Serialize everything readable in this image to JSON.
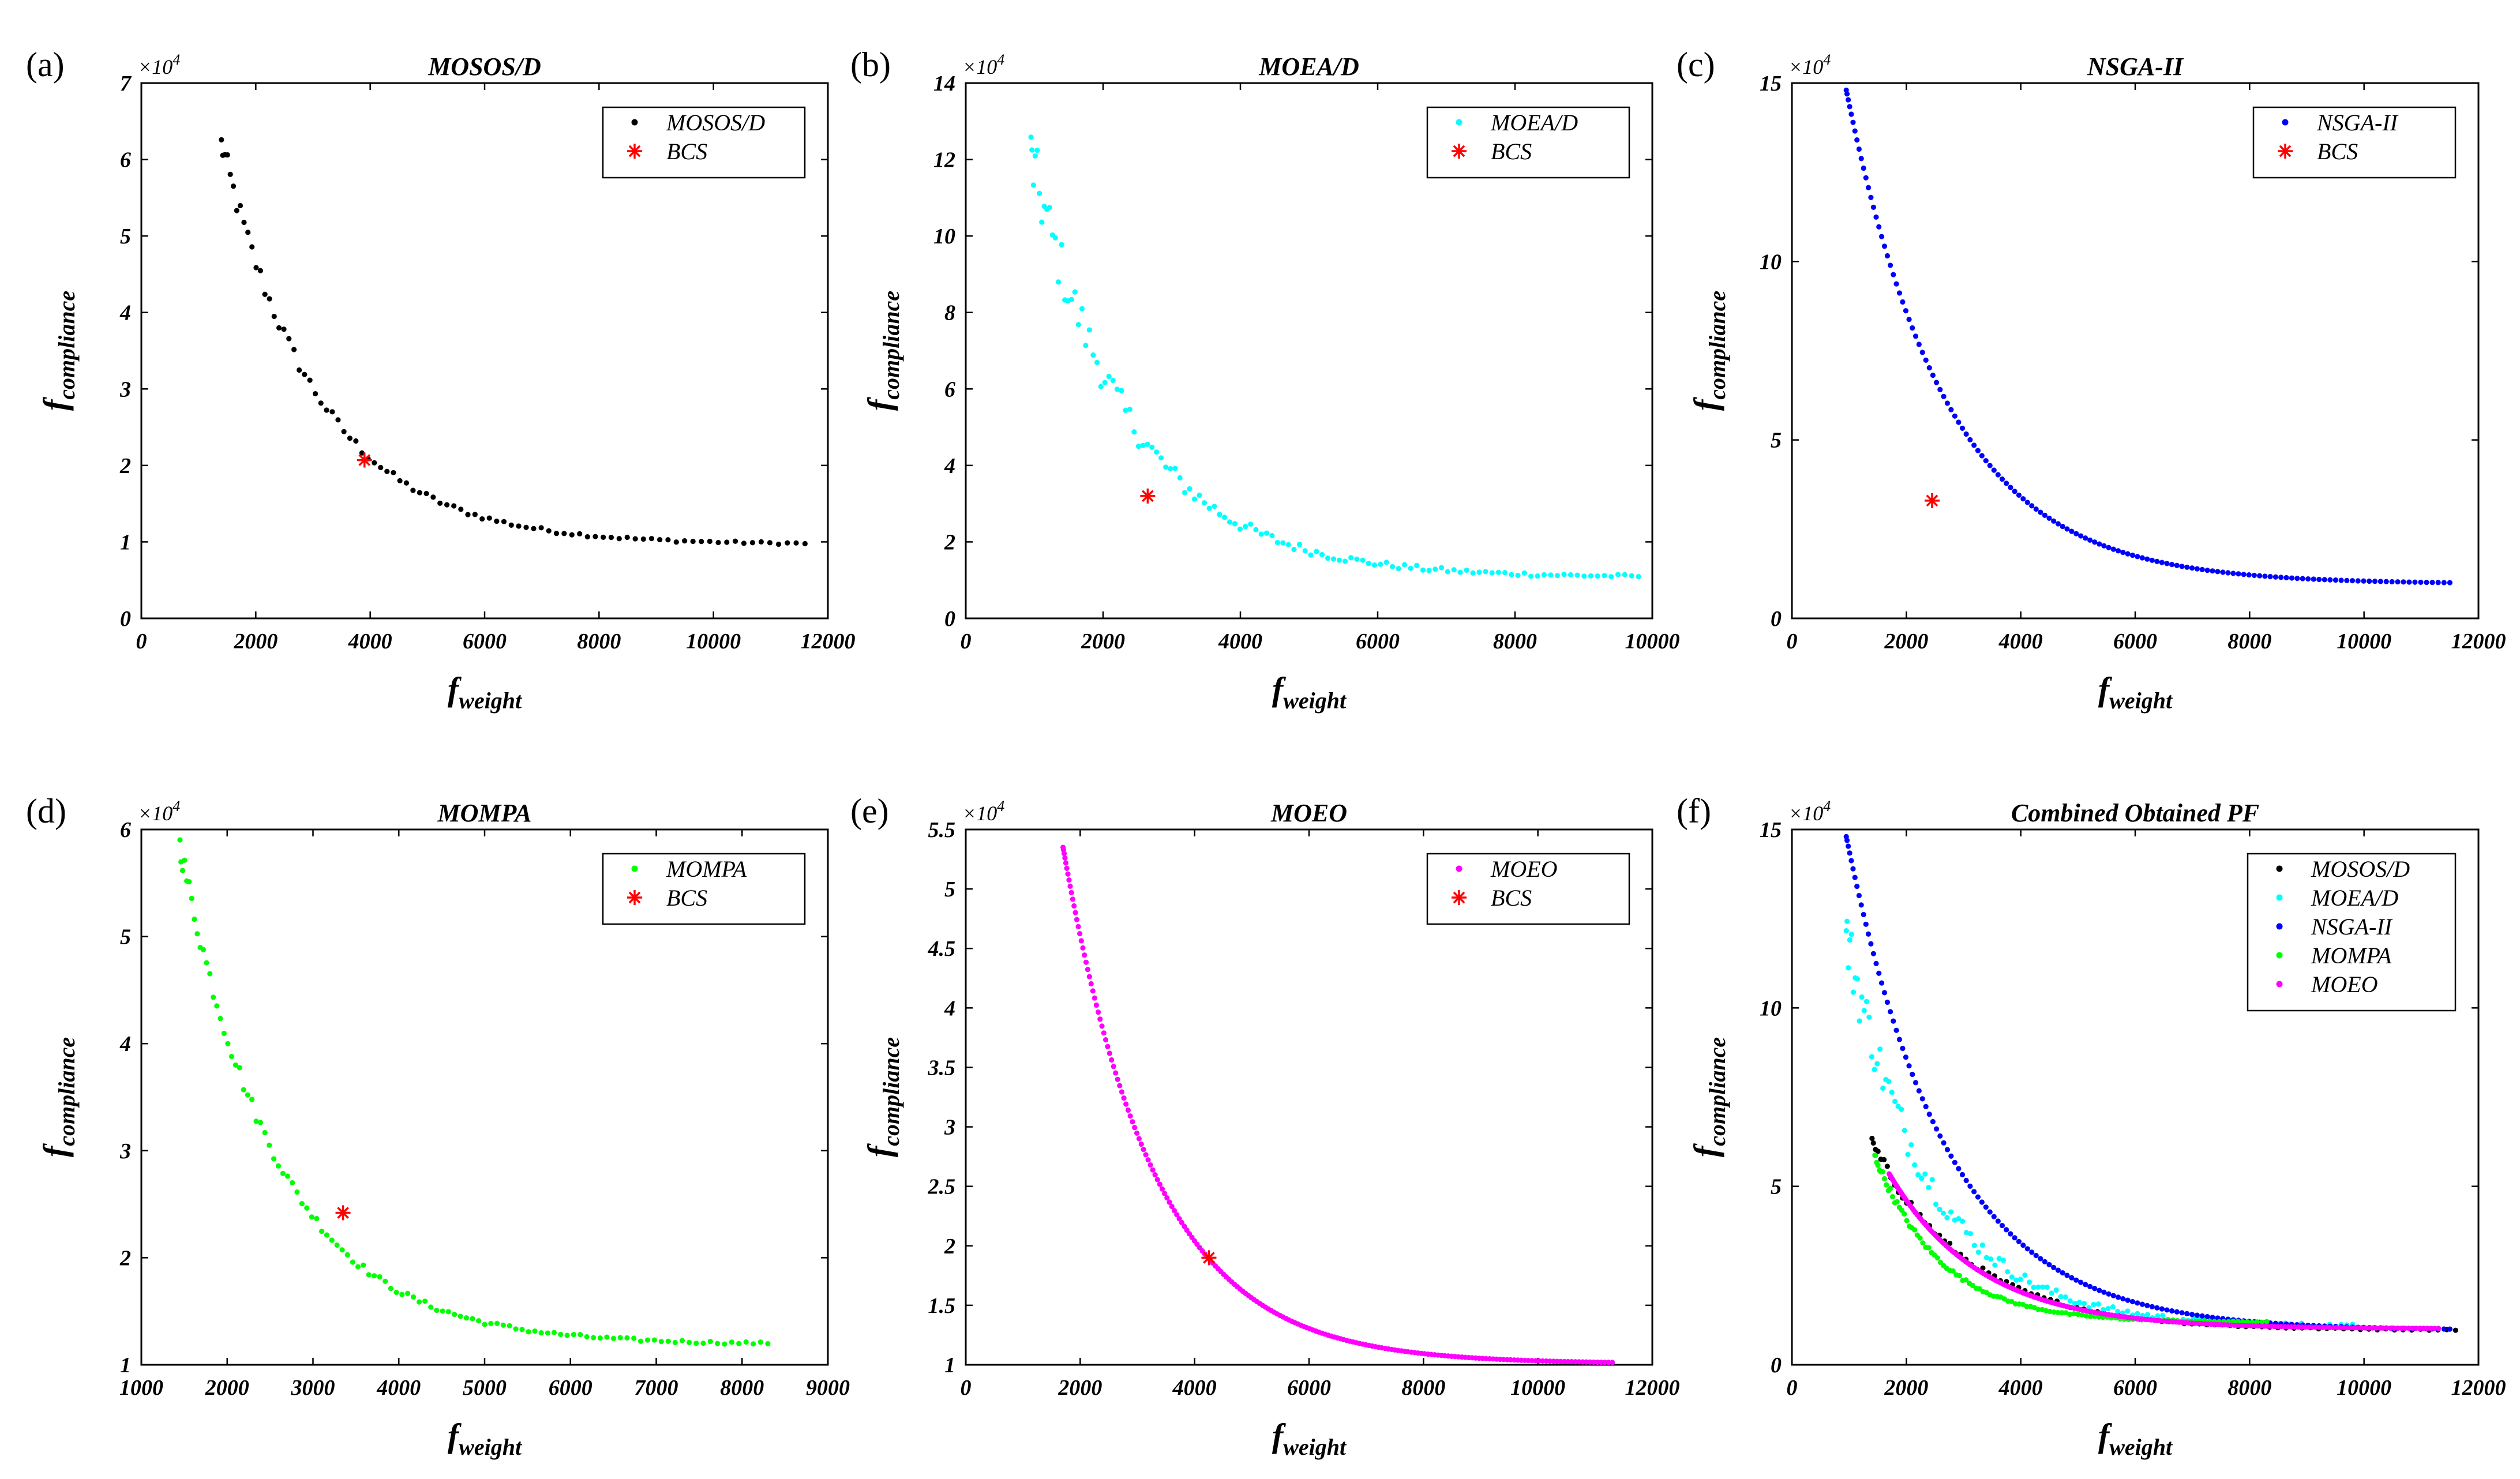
{
  "chart_data": [
    {
      "id": "a",
      "panel_label": "(a)",
      "type": "scatter",
      "title": "MOSOS/D",
      "xlabel": "f",
      "xlabel_sub": "weight",
      "ylabel": "f",
      "ylabel_sub": "compliance",
      "y_multiplier": "×10",
      "y_exponent": "4",
      "xlim": [
        0,
        12000
      ],
      "ylim": [
        0,
        7
      ],
      "xticks": [
        0,
        2000,
        4000,
        6000,
        8000,
        10000,
        12000
      ],
      "xtick_labels": [
        "0",
        "2000",
        "4000",
        "6000",
        "8000",
        "10000",
        "12000"
      ],
      "yticks": [
        0,
        1,
        2,
        3,
        4,
        5,
        6,
        7
      ],
      "ytick_labels": [
        "0",
        "1",
        "2",
        "3",
        "4",
        "5",
        "6",
        "7"
      ],
      "legend_position": "top-right",
      "series": [
        {
          "name": "MOSOS/D",
          "color": "#000000",
          "marker": "dot",
          "front": {
            "x_start": 1400,
            "x_end": 11600,
            "y_start": 6.2,
            "y_end": 0.98,
            "n": 90,
            "spread": 0.03
          }
        },
        {
          "name": "BCS",
          "color": "#ff0000",
          "marker": "star",
          "points": [
            [
              3900,
              2.07
            ]
          ]
        }
      ]
    },
    {
      "id": "b",
      "panel_label": "(b)",
      "type": "scatter",
      "title": "MOEA/D",
      "xlabel": "f",
      "xlabel_sub": "weight",
      "ylabel": "f",
      "ylabel_sub": "compliance",
      "y_multiplier": "×10",
      "y_exponent": "4",
      "xlim": [
        0,
        10000
      ],
      "ylim": [
        0,
        14
      ],
      "xticks": [
        0,
        2000,
        4000,
        6000,
        8000,
        10000
      ],
      "xtick_labels": [
        "0",
        "2000",
        "4000",
        "6000",
        "8000",
        "10000"
      ],
      "yticks": [
        0,
        2,
        4,
        6,
        8,
        10,
        12,
        14
      ],
      "ytick_labels": [
        "0",
        "2",
        "4",
        "6",
        "8",
        "10",
        "12",
        "14"
      ],
      "legend_position": "top-right",
      "series": [
        {
          "name": "MOEA/D",
          "color": "#00ffff",
          "marker": "dot",
          "front": {
            "x_start": 950,
            "x_end": 9800,
            "y_start": 12.0,
            "y_end": 1.1,
            "n": 120,
            "spread": 0.08
          }
        },
        {
          "name": "BCS",
          "color": "#ff0000",
          "marker": "star",
          "points": [
            [
              2650,
              3.2
            ]
          ]
        }
      ]
    },
    {
      "id": "c",
      "panel_label": "(c)",
      "type": "scatter",
      "title": "NSGA-II",
      "xlabel": "f",
      "xlabel_sub": "weight",
      "ylabel": "f",
      "ylabel_sub": "compliance",
      "y_multiplier": "×10",
      "y_exponent": "4",
      "xlim": [
        0,
        12000
      ],
      "ylim": [
        0,
        15
      ],
      "xticks": [
        0,
        2000,
        4000,
        6000,
        8000,
        10000,
        12000
      ],
      "xtick_labels": [
        "0",
        "2000",
        "4000",
        "6000",
        "8000",
        "10000",
        "12000"
      ],
      "yticks": [
        0,
        5,
        10,
        15
      ],
      "ytick_labels": [
        "0",
        "5",
        "10",
        "15"
      ],
      "legend_position": "top-right",
      "series": [
        {
          "name": "NSGA-II",
          "color": "#0000ff",
          "marker": "dot",
          "front": {
            "x_start": 950,
            "x_end": 11500,
            "y_start": 14.8,
            "y_end": 1.0,
            "n": 140,
            "spread": 0.0
          }
        },
        {
          "name": "BCS",
          "color": "#ff0000",
          "marker": "star",
          "points": [
            [
              2450,
              3.3
            ]
          ]
        }
      ]
    },
    {
      "id": "d",
      "panel_label": "(d)",
      "type": "scatter",
      "title": "MOMPA",
      "xlabel": "f",
      "xlabel_sub": "weight",
      "ylabel": "f",
      "ylabel_sub": "compliance",
      "y_multiplier": "×10",
      "y_exponent": "4",
      "xlim": [
        1000,
        9000
      ],
      "ylim": [
        1,
        6
      ],
      "xticks": [
        1000,
        2000,
        3000,
        4000,
        5000,
        6000,
        7000,
        8000,
        9000
      ],
      "xtick_labels": [
        "1000",
        "2000",
        "3000",
        "4000",
        "5000",
        "6000",
        "7000",
        "8000",
        "9000"
      ],
      "yticks": [
        1,
        2,
        3,
        4,
        5,
        6
      ],
      "ytick_labels": [
        "1",
        "2",
        "3",
        "4",
        "5",
        "6"
      ],
      "legend_position": "top-right",
      "series": [
        {
          "name": "MOMPA",
          "color": "#00ff00",
          "marker": "dot",
          "front": {
            "x_start": 1450,
            "x_end": 8300,
            "y_start": 5.85,
            "y_end": 1.2,
            "n": 110,
            "spread": 0.02
          }
        },
        {
          "name": "BCS",
          "color": "#ff0000",
          "marker": "star",
          "points": [
            [
              3350,
              2.42
            ]
          ]
        }
      ]
    },
    {
      "id": "e",
      "panel_label": "(e)",
      "type": "scatter",
      "title": "MOEO",
      "xlabel": "f",
      "xlabel_sub": "weight",
      "ylabel": "f",
      "ylabel_sub": "compliance",
      "y_multiplier": "×10",
      "y_exponent": "4",
      "xlim": [
        0,
        12000
      ],
      "ylim": [
        1,
        5.5
      ],
      "xticks": [
        0,
        2000,
        4000,
        6000,
        8000,
        10000,
        12000
      ],
      "xtick_labels": [
        "0",
        "2000",
        "4000",
        "6000",
        "8000",
        "10000",
        "12000"
      ],
      "yticks": [
        1,
        1.5,
        2,
        2.5,
        3,
        3.5,
        4,
        4.5,
        5,
        5.5
      ],
      "ytick_labels": [
        "1",
        "1.5",
        "2",
        "2.5",
        "3",
        "3.5",
        "4",
        "4.5",
        "5",
        "5.5"
      ],
      "legend_position": "top-right",
      "series": [
        {
          "name": "MOEO",
          "color": "#ff00ff",
          "marker": "dot",
          "front": {
            "x_start": 1700,
            "x_end": 11300,
            "y_start": 5.35,
            "y_end": 1.02,
            "n": 200,
            "spread": 0.0
          }
        },
        {
          "name": "BCS",
          "color": "#ff0000",
          "marker": "star",
          "points": [
            [
              4250,
              1.9
            ]
          ]
        }
      ]
    },
    {
      "id": "f",
      "panel_label": "(f)",
      "type": "scatter",
      "title": "Combined Obtained PF",
      "xlabel": "f",
      "xlabel_sub": "weight",
      "ylabel": "f",
      "ylabel_sub": "compliance",
      "y_multiplier": "×10",
      "y_exponent": "4",
      "xlim": [
        0,
        12000
      ],
      "ylim": [
        0,
        15
      ],
      "xticks": [
        0,
        2000,
        4000,
        6000,
        8000,
        10000,
        12000
      ],
      "xtick_labels": [
        "0",
        "2000",
        "4000",
        "6000",
        "8000",
        "10000",
        "12000"
      ],
      "yticks": [
        0,
        5,
        10,
        15
      ],
      "ytick_labels": [
        "0",
        "5",
        "10",
        "15"
      ],
      "legend_position": "top-right",
      "series": [
        {
          "name": "MOSOS/D",
          "color": "#000000",
          "marker": "dot",
          "front": {
            "x_start": 1400,
            "x_end": 11600,
            "y_start": 6.2,
            "y_end": 0.98,
            "n": 90,
            "spread": 0.03
          }
        },
        {
          "name": "MOEA/D",
          "color": "#00ffff",
          "marker": "dot",
          "front": {
            "x_start": 950,
            "x_end": 9800,
            "y_start": 12.0,
            "y_end": 1.1,
            "n": 120,
            "spread": 0.08
          }
        },
        {
          "name": "NSGA-II",
          "color": "#0000ff",
          "marker": "dot",
          "front": {
            "x_start": 950,
            "x_end": 11500,
            "y_start": 14.8,
            "y_end": 1.0,
            "n": 140,
            "spread": 0.0
          }
        },
        {
          "name": "MOMPA",
          "color": "#00ff00",
          "marker": "dot",
          "front": {
            "x_start": 1450,
            "x_end": 8300,
            "y_start": 5.85,
            "y_end": 1.2,
            "n": 110,
            "spread": 0.02
          }
        },
        {
          "name": "MOEO",
          "color": "#ff00ff",
          "marker": "dot",
          "front": {
            "x_start": 1700,
            "x_end": 11300,
            "y_start": 5.35,
            "y_end": 1.02,
            "n": 200,
            "spread": 0.0
          }
        }
      ]
    }
  ]
}
